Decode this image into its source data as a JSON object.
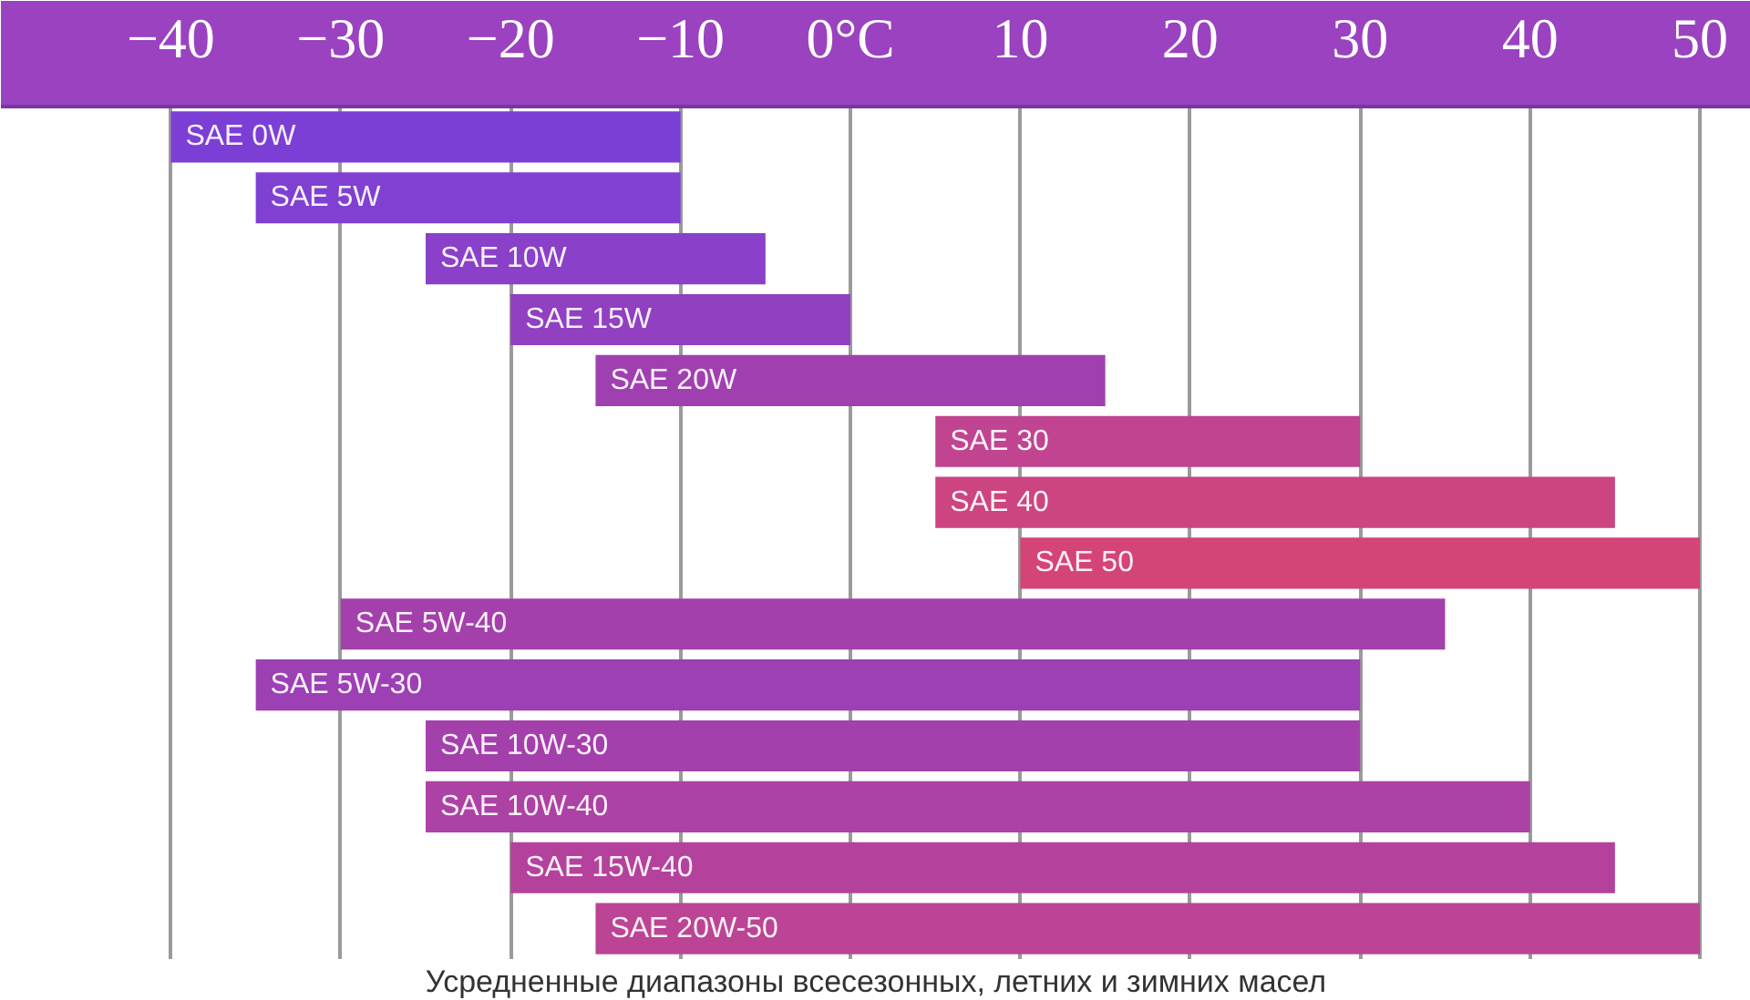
{
  "chart_data": {
    "type": "bar",
    "orientation": "horizontal",
    "categories": [
      "SAE 0W",
      "SAE 5W",
      "SAE 10W",
      "SAE 15W",
      "SAE 20W",
      "SAE 30",
      "SAE 40",
      "SAE 50",
      "SAE 5W-40",
      "SAE 5W-30",
      "SAE 10W-30",
      "SAE 10W-40",
      "SAE 15W-40",
      "SAE 20W-50"
    ],
    "base": [
      -40,
      -35,
      -25,
      -20,
      -15,
      5,
      5,
      10,
      -30,
      -35,
      -25,
      -25,
      -20,
      -15
    ],
    "values": [
      30,
      25,
      20,
      20,
      30,
      25,
      40,
      40,
      65,
      65,
      55,
      65,
      65,
      65
    ],
    "colors": [
      "#7b3fd6",
      "#8040d2",
      "#8a40c8",
      "#9040c0",
      "#a040b0",
      "#c04490",
      "#cc4480",
      "#d44478",
      "#a440ac",
      "#9c40b4",
      "#a440ac",
      "#ac42a4",
      "#b4429c",
      "#bc4494"
    ],
    "xlim": [
      -50,
      53
    ],
    "xticks": [
      -40,
      -30,
      -20,
      -10,
      {
        "value": 0,
        "label": "0°C"
      },
      10,
      20,
      30,
      40,
      50
    ],
    "grid": "x",
    "annotations": [
      "Усредненные диапазоны всесезонных, летних и зимних масел"
    ]
  }
}
